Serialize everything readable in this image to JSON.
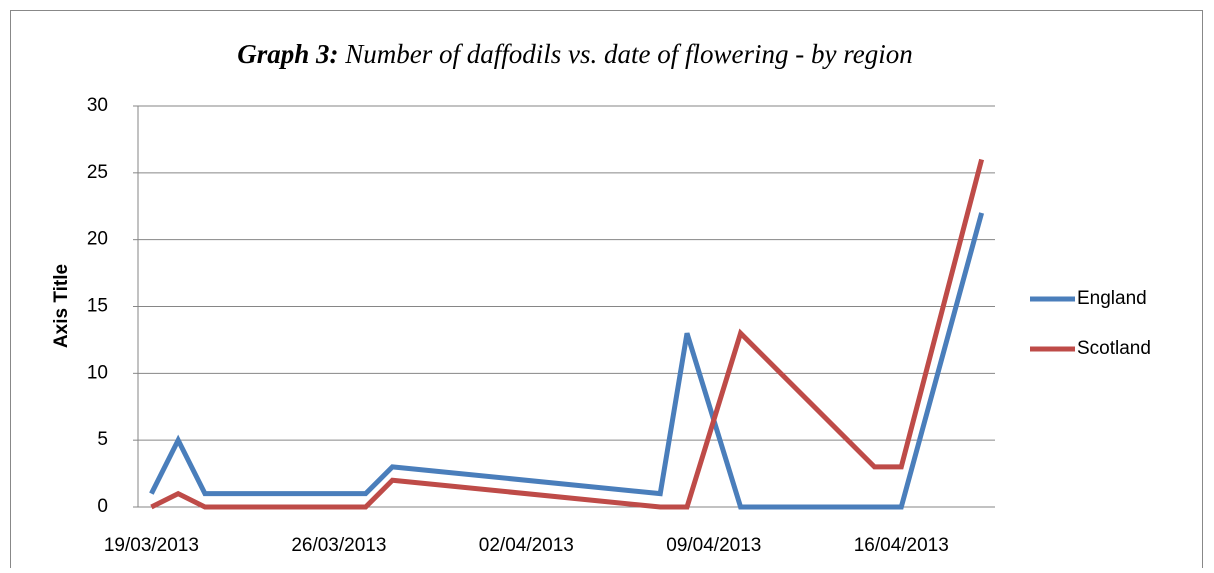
{
  "chart_data": {
    "type": "line",
    "title_prefix": "Graph 3:",
    "title": "Number of daffodils vs. date of flowering - by region",
    "y_label": "Axis Title",
    "x": [
      "19/03/2013",
      "20/03/2013",
      "21/03/2013",
      "27/03/2013",
      "28/03/2013",
      "07/04/2013",
      "08/04/2013",
      "10/04/2013",
      "15/04/2013",
      "16/04/2013",
      "19/04/2013"
    ],
    "series": [
      {
        "name": "England",
        "color": "#4a7ebb",
        "values": [
          1,
          5,
          1,
          1,
          3,
          1,
          13,
          0,
          0,
          0,
          22
        ]
      },
      {
        "name": "Scotland",
        "color": "#be4b48",
        "values": [
          0,
          1,
          0,
          0,
          2,
          0,
          0,
          13,
          3,
          3,
          26
        ]
      }
    ],
    "xlim": [
      "19/03/2013",
      "19/04/2013"
    ],
    "xticks": [
      "19/03/2013",
      "26/03/2013",
      "02/04/2013",
      "09/04/2013",
      "16/04/2013"
    ],
    "ylim": [
      0,
      30
    ],
    "yticks": [
      0,
      5,
      10,
      15,
      20,
      25,
      30
    ],
    "grid": true,
    "legend": "right"
  }
}
